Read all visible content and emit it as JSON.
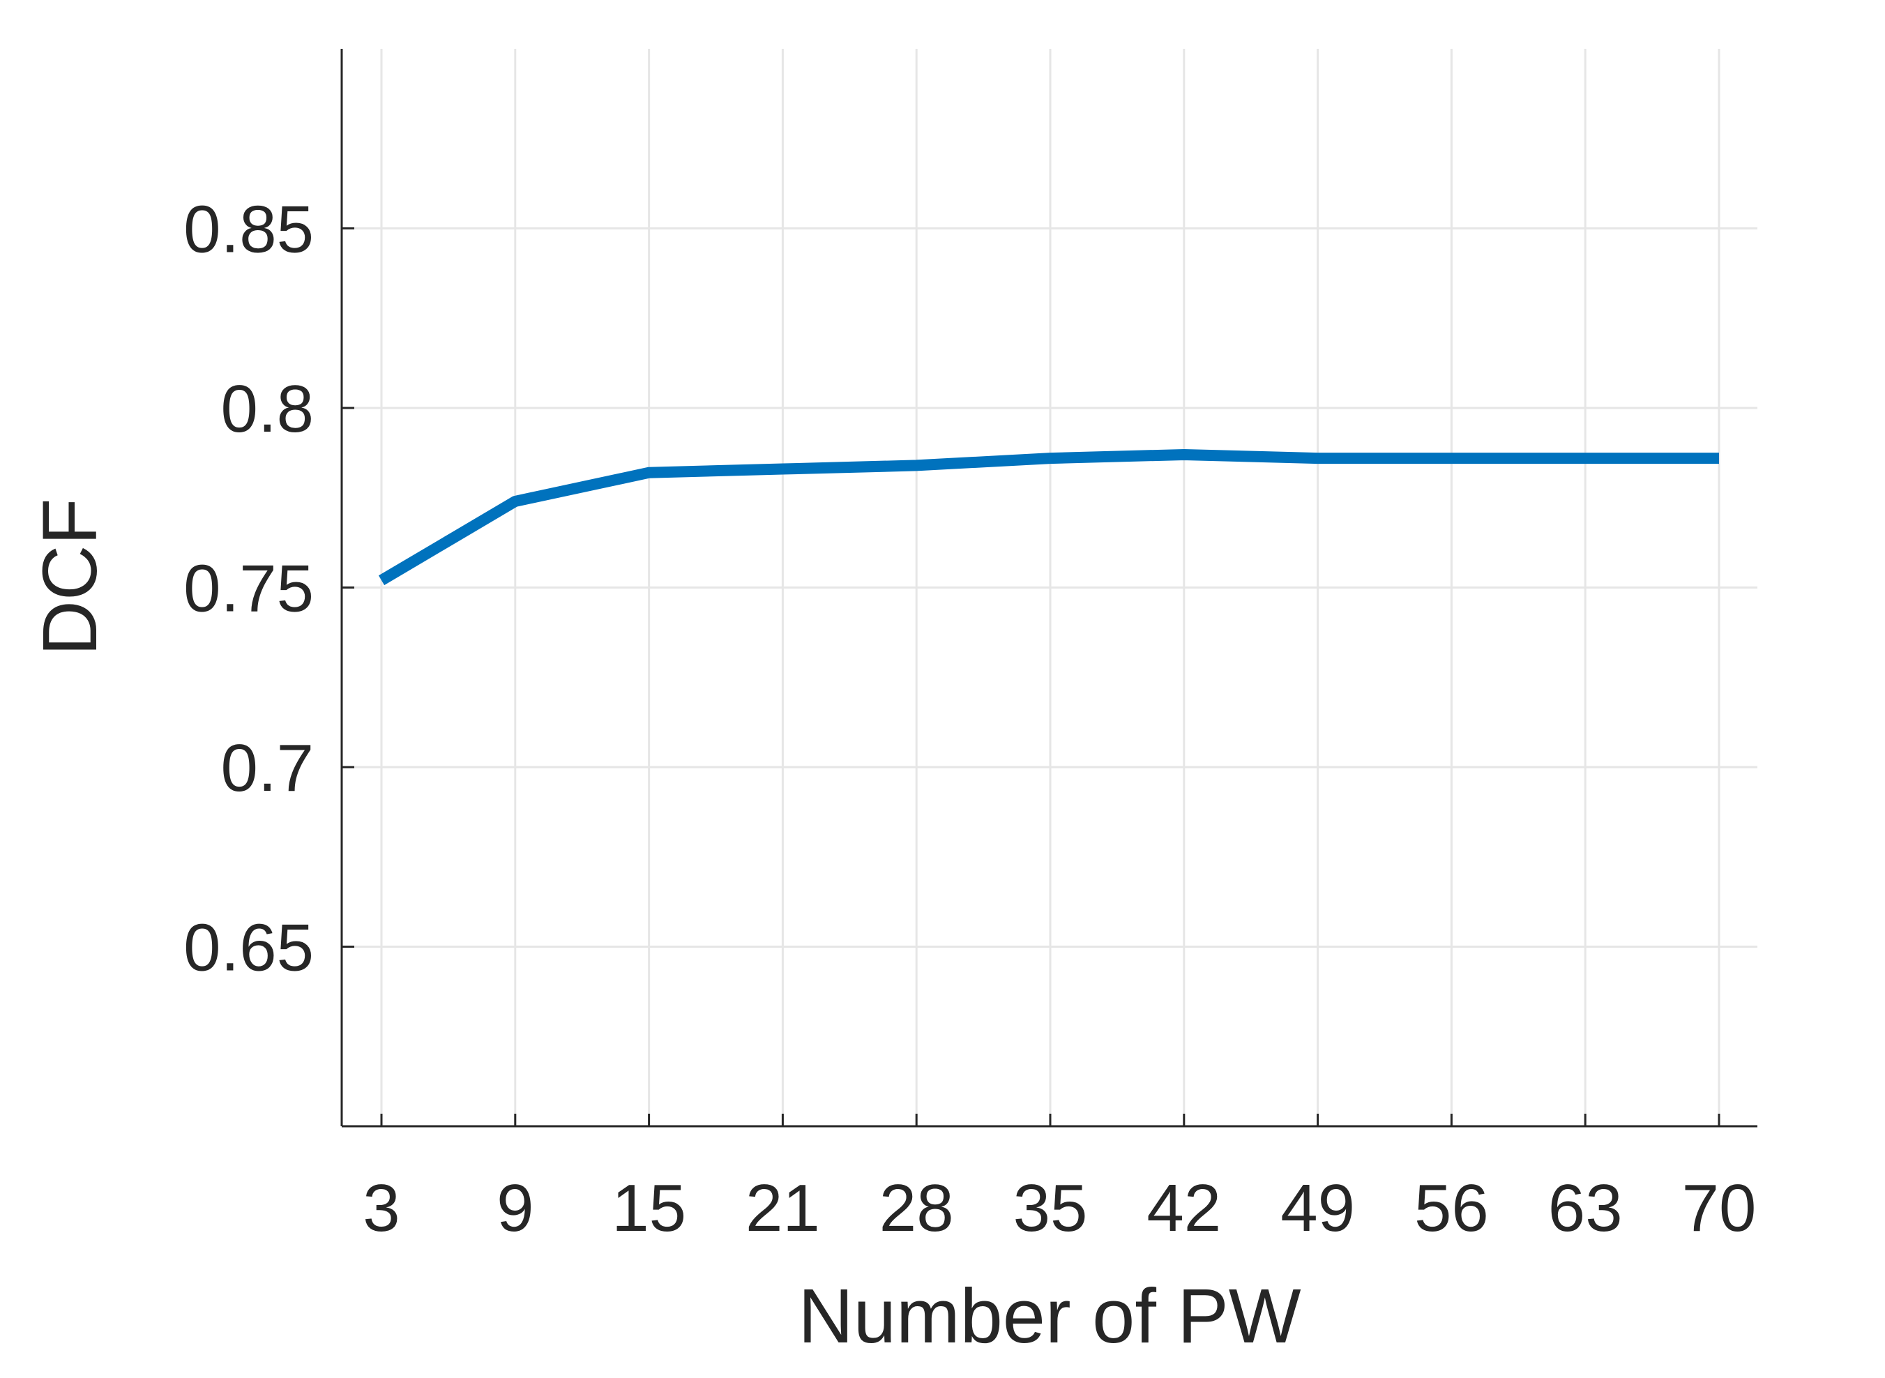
{
  "chart_data": {
    "type": "line",
    "title": "",
    "xlabel": "Number of PW",
    "ylabel": "DCF",
    "x_ticks": [
      "3",
      "9",
      "15",
      "21",
      "28",
      "35",
      "42",
      "49",
      "56",
      "63",
      "70"
    ],
    "y_ticks": [
      "0.65",
      "0.7",
      "0.75",
      "0.8",
      "0.85"
    ],
    "y_tick_values": [
      0.65,
      0.7,
      0.75,
      0.8,
      0.85
    ],
    "ylim": [
      0.6,
      0.9
    ],
    "grid": true,
    "series": [
      {
        "color": "#0072bd",
        "points": [
          {
            "x": 3,
            "y": 0.752
          },
          {
            "x": 9,
            "y": 0.774
          },
          {
            "x": 15,
            "y": 0.782
          },
          {
            "x": 21,
            "y": 0.783
          },
          {
            "x": 28,
            "y": 0.784
          },
          {
            "x": 35,
            "y": 0.786
          },
          {
            "x": 42,
            "y": 0.787
          },
          {
            "x": 49,
            "y": 0.786
          },
          {
            "x": 56,
            "y": 0.786
          },
          {
            "x": 63,
            "y": 0.786
          },
          {
            "x": 70,
            "y": 0.786
          }
        ]
      }
    ],
    "colors": {
      "axis": "#262626",
      "grid": "#e6e6e6"
    }
  }
}
